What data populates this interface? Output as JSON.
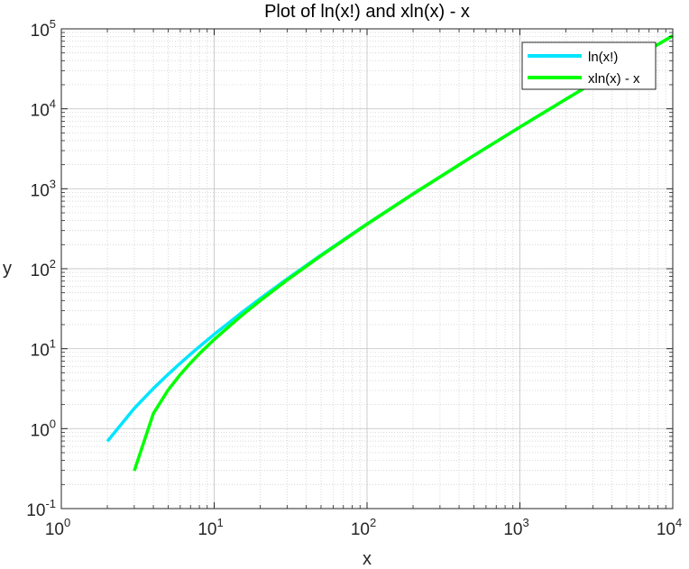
{
  "chart_data": {
    "type": "line",
    "title": "Plot of ln(x!) and xln(x) - x",
    "xlabel": "x",
    "ylabel": "y",
    "xscale": "log",
    "yscale": "log",
    "xlim": [
      1,
      10000
    ],
    "ylim": [
      0.1,
      100000
    ],
    "grid": true,
    "minor_grid": true,
    "legend_position": "top-right",
    "x_ticks": [
      {
        "base": "10",
        "exp": "0",
        "value": 1
      },
      {
        "base": "10",
        "exp": "1",
        "value": 10
      },
      {
        "base": "10",
        "exp": "2",
        "value": 100
      },
      {
        "base": "10",
        "exp": "3",
        "value": 1000
      },
      {
        "base": "10",
        "exp": "4",
        "value": 10000
      }
    ],
    "y_ticks": [
      {
        "base": "10",
        "exp": "-1",
        "value": 0.1
      },
      {
        "base": "10",
        "exp": "0",
        "value": 1
      },
      {
        "base": "10",
        "exp": "1",
        "value": 10
      },
      {
        "base": "10",
        "exp": "2",
        "value": 100
      },
      {
        "base": "10",
        "exp": "3",
        "value": 1000
      },
      {
        "base": "10",
        "exp": "4",
        "value": 10000
      },
      {
        "base": "10",
        "exp": "5",
        "value": 100000
      }
    ],
    "series": [
      {
        "name": "ln(x!)",
        "color": "#00e5ff",
        "x": [
          2,
          3,
          4,
          5,
          6,
          7,
          8,
          10,
          15,
          20,
          30,
          50,
          100,
          200,
          500,
          1000,
          2000,
          5000,
          10000
        ],
        "values": [
          0.693,
          1.792,
          3.178,
          4.787,
          6.579,
          8.525,
          10.6,
          15.1,
          27.9,
          42.34,
          74.66,
          148.5,
          363.7,
          863.2,
          2611.3,
          5912.1,
          13206.5,
          37591.1,
          82108.9
        ]
      },
      {
        "name": "xln(x) - x",
        "color": "#00ff00",
        "x": [
          3,
          4,
          5,
          6,
          7,
          8,
          10,
          15,
          20,
          30,
          50,
          100,
          200,
          500,
          1000,
          2000,
          5000,
          10000
        ],
        "values": [
          0.296,
          1.545,
          3.047,
          4.751,
          6.621,
          8.636,
          13.03,
          25.62,
          39.91,
          72.04,
          145.6,
          360.5,
          859.7,
          2607.3,
          5907.8,
          13201.8,
          37585.9,
          82103.4
        ]
      }
    ]
  }
}
